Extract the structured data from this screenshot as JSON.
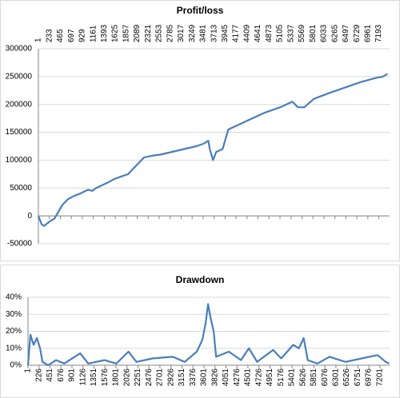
{
  "chart_data": [
    {
      "type": "line",
      "title": "Profit/loss",
      "x_tick_position": "top",
      "grid": true,
      "color": "#4a7ebb",
      "xlim": [
        1,
        7420
      ],
      "ylim": [
        -50000,
        300000
      ],
      "xticks": [
        1,
        233,
        465,
        697,
        929,
        1161,
        1393,
        1625,
        1857,
        2089,
        2321,
        2553,
        2785,
        3017,
        3249,
        3481,
        3713,
        3945,
        4177,
        4409,
        4641,
        4873,
        5105,
        5337,
        5569,
        5801,
        6033,
        6265,
        6497,
        6729,
        6961,
        7193
      ],
      "yticks": [
        -50000,
        0,
        50000,
        100000,
        150000,
        200000,
        250000,
        300000
      ],
      "x": [
        1,
        69,
        119,
        180,
        238,
        339,
        407,
        509,
        627,
        760,
        881,
        1050,
        1140,
        1219,
        1473,
        1600,
        1727,
        1896,
        2065,
        2234,
        2400,
        2573,
        2827,
        3080,
        3334,
        3503,
        3588,
        3622,
        3690,
        3757,
        3893,
        4011,
        4265,
        4519,
        4772,
        5111,
        5365,
        5483,
        5618,
        5821,
        6126,
        6464,
        6803,
        7141,
        7277,
        7378
      ],
      "values": [
        0,
        -15000,
        -18000,
        -14000,
        -10000,
        -5000,
        5000,
        20000,
        30000,
        36000,
        40000,
        47000,
        45000,
        50000,
        60000,
        66000,
        70000,
        75000,
        90000,
        105000,
        108000,
        110000,
        115000,
        120000,
        125000,
        130000,
        135000,
        120000,
        100000,
        115000,
        120000,
        155000,
        165000,
        175000,
        185000,
        195000,
        205000,
        195000,
        195000,
        210000,
        220000,
        230000,
        240000,
        248000,
        250000,
        255000
      ]
    },
    {
      "type": "line",
      "title": "Drawdown",
      "x_tick_position": "bottom",
      "grid": true,
      "color": "#4a7ebb",
      "xlim": [
        1,
        7400
      ],
      "ylim": [
        0,
        40
      ],
      "xticks": [
        1,
        226,
        451,
        676,
        901,
        1126,
        1351,
        1576,
        1801,
        2026,
        2251,
        2476,
        2701,
        2926,
        3151,
        3376,
        3601,
        3826,
        4051,
        4276,
        4501,
        4726,
        4951,
        5176,
        5401,
        5626,
        5851,
        6076,
        6301,
        6526,
        6751,
        6976,
        7201
      ],
      "yticks": [
        {
          "value": 0,
          "label": "0%"
        },
        {
          "value": 10,
          "label": "10%"
        },
        {
          "value": 20,
          "label": "20%"
        },
        {
          "value": 30,
          "label": "30%"
        },
        {
          "value": 40,
          "label": "40%"
        }
      ],
      "x": [
        1,
        50,
        116,
        182,
        248,
        297,
        412,
        577,
        741,
        1070,
        1234,
        1563,
        1810,
        2057,
        2221,
        2550,
        2961,
        3208,
        3455,
        3570,
        3636,
        3685,
        3735,
        3801,
        3850,
        4112,
        4359,
        4523,
        4689,
        5017,
        5182,
        5428,
        5544,
        5642,
        5725,
        5922,
        6169,
        6498,
        6827,
        7155,
        7320,
        7390
      ],
      "values": [
        0,
        18,
        12,
        16,
        10,
        2,
        0,
        3,
        1,
        7,
        1,
        3,
        1,
        8,
        2,
        4,
        5,
        2,
        8,
        15,
        25,
        36,
        28,
        20,
        5,
        8,
        3,
        10,
        2,
        9,
        4,
        12,
        10,
        16,
        3,
        1,
        5,
        2,
        4,
        6,
        2,
        1
      ]
    }
  ]
}
